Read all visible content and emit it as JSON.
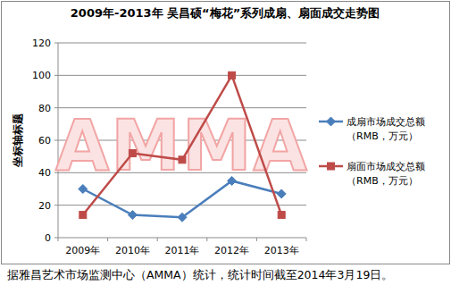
{
  "chart_data": {
    "type": "line",
    "title": "2009年-2013年 吴昌硕“梅花”系列成扇、扇面成交走势图",
    "y_label": "坐标轴标题",
    "watermark": "AMMA",
    "footnote": "据雅昌艺术市场监测中心（AMMA）统计，统计时间截至2014年3月19日。",
    "categories": [
      "2009年",
      "2010年",
      "2011年",
      "2012年",
      "2013年"
    ],
    "series": [
      {
        "name": "成扇市场成交总额（RMB，万元）",
        "color": "#4a7ebb",
        "marker": "diamond",
        "values": [
          30,
          14,
          12.5,
          35,
          27
        ]
      },
      {
        "name": "扇面市场成交总额（RMB，万元）",
        "color": "#be4b48",
        "marker": "square",
        "values": [
          14,
          52,
          48,
          100,
          14
        ]
      }
    ],
    "ylim": [
      0,
      120
    ],
    "yticks": [
      0,
      20,
      40,
      60,
      80,
      100,
      120
    ],
    "grid": true,
    "legend": "right"
  }
}
